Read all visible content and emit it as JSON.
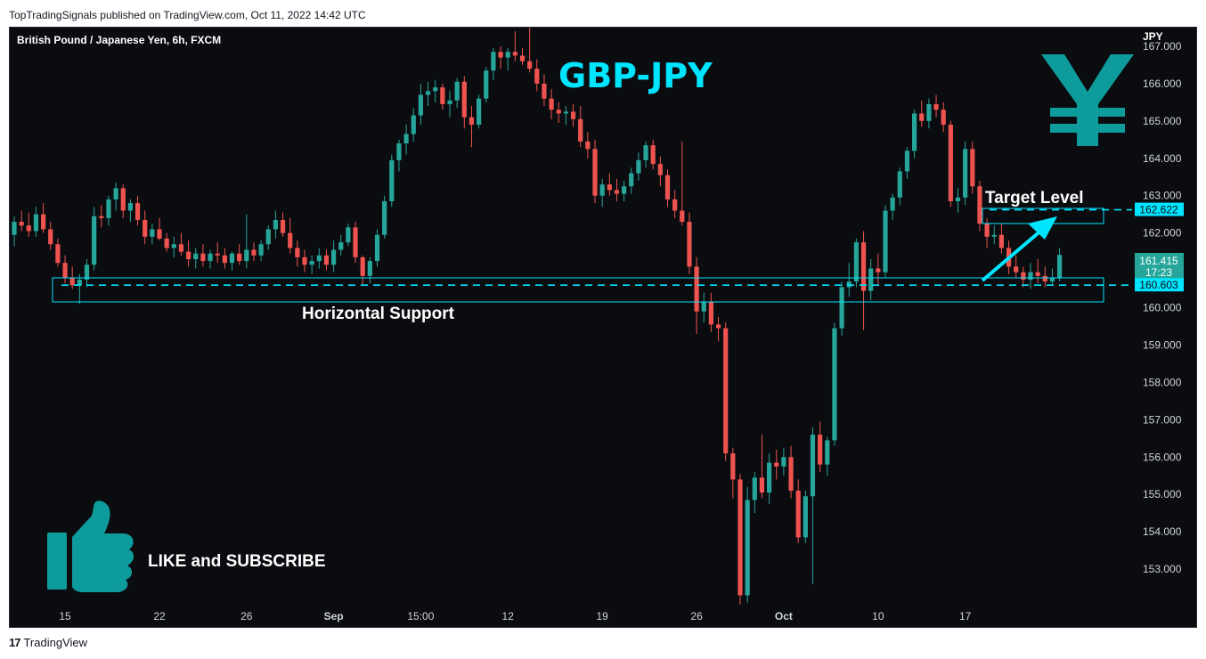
{
  "header": {
    "published_line": "TopTradingSignals published on TradingView.com, Oct 11, 2022 14:42 UTC"
  },
  "footer": {
    "brand": "TradingView",
    "logo_glyph": "17"
  },
  "chart_data": {
    "type": "candlestick",
    "title": "British Pound / Japanese Yen, 6h, FXCM",
    "overlay_title": "GBP-JPY",
    "currency_label": "JPY",
    "yen_symbol": "¥",
    "ylim": [
      152.0,
      167.5
    ],
    "y_ticks": [
      167.0,
      166.0,
      165.0,
      164.0,
      163.0,
      162.0,
      161.0,
      160.0,
      159.0,
      158.0,
      157.0,
      156.0,
      155.0,
      154.0,
      153.0
    ],
    "x_tick_labels": [
      {
        "label": "15",
        "bar": 7
      },
      {
        "label": "22",
        "bar": 20
      },
      {
        "label": "26",
        "bar": 32
      },
      {
        "label": "Sep",
        "bar": 44
      },
      {
        "label": "15:00",
        "bar": 56
      },
      {
        "label": "12",
        "bar": 68
      },
      {
        "label": "19",
        "bar": 81
      },
      {
        "label": "26",
        "bar": 94
      },
      {
        "label": "Oct",
        "bar": 106
      },
      {
        "label": "10",
        "bar": 119
      },
      {
        "label": "17",
        "bar": 131
      }
    ],
    "last_price": {
      "value": "161.415",
      "countdown": "17:23",
      "price": 161.415
    },
    "levels": [
      {
        "name": "Target Level",
        "value": "162.622",
        "price": 162.622
      },
      {
        "name": "Horizontal Support",
        "value": "160.603",
        "price": 160.603
      }
    ],
    "annotations": {
      "target": "Target Level",
      "support": "Horizontal Support",
      "cta": "LIKE and SUBSCRIBE"
    },
    "colors": {
      "background": "#0b0c10",
      "up": "#26a69a",
      "down": "#ef5350",
      "accent": "#00e5ff",
      "icon": "#0e9b9b",
      "axis_text": "#d1d4dc",
      "last_price_bg": "#26a69a"
    },
    "ohlc": [
      [
        161.95,
        162.45,
        161.65,
        162.3
      ],
      [
        162.3,
        162.6,
        162.05,
        162.2
      ],
      [
        162.2,
        162.55,
        161.9,
        162.05
      ],
      [
        162.05,
        162.7,
        161.9,
        162.5
      ],
      [
        162.5,
        162.8,
        162.0,
        162.1
      ],
      [
        162.1,
        162.3,
        161.55,
        161.7
      ],
      [
        161.7,
        161.85,
        161.1,
        161.2
      ],
      [
        161.2,
        161.4,
        160.65,
        160.8
      ],
      [
        160.8,
        161.1,
        160.5,
        160.6
      ],
      [
        160.6,
        160.9,
        160.1,
        160.75
      ],
      [
        160.75,
        161.3,
        160.55,
        161.15
      ],
      [
        161.15,
        162.7,
        161.0,
        162.45
      ],
      [
        162.45,
        162.75,
        162.15,
        162.4
      ],
      [
        162.4,
        163.0,
        162.2,
        162.9
      ],
      [
        162.9,
        163.35,
        162.6,
        163.2
      ],
      [
        163.2,
        163.3,
        162.4,
        162.6
      ],
      [
        162.6,
        162.9,
        162.3,
        162.8
      ],
      [
        162.8,
        163.0,
        162.2,
        162.35
      ],
      [
        162.35,
        162.6,
        161.7,
        161.9
      ],
      [
        161.9,
        162.25,
        161.7,
        162.1
      ],
      [
        162.1,
        162.4,
        161.8,
        161.85
      ],
      [
        161.85,
        162.0,
        161.5,
        161.6
      ],
      [
        161.6,
        161.9,
        161.35,
        161.7
      ],
      [
        161.7,
        162.0,
        161.4,
        161.5
      ],
      [
        161.5,
        161.8,
        161.1,
        161.3
      ],
      [
        161.3,
        161.6,
        161.05,
        161.45
      ],
      [
        161.45,
        161.7,
        161.1,
        161.25
      ],
      [
        161.25,
        161.55,
        161.05,
        161.45
      ],
      [
        161.45,
        161.75,
        161.2,
        161.4
      ],
      [
        161.4,
        161.6,
        161.05,
        161.2
      ],
      [
        161.2,
        161.5,
        161.0,
        161.45
      ],
      [
        161.45,
        161.7,
        161.15,
        161.25
      ],
      [
        161.25,
        162.5,
        161.05,
        161.55
      ],
      [
        161.55,
        161.75,
        161.25,
        161.4
      ],
      [
        161.4,
        161.8,
        161.25,
        161.7
      ],
      [
        161.7,
        162.2,
        161.55,
        162.1
      ],
      [
        162.1,
        162.6,
        161.85,
        162.35
      ],
      [
        162.35,
        162.55,
        161.9,
        162.0
      ],
      [
        162.0,
        162.4,
        161.45,
        161.6
      ],
      [
        161.6,
        161.8,
        161.1,
        161.35
      ],
      [
        161.35,
        161.55,
        160.95,
        161.15
      ],
      [
        161.15,
        161.4,
        160.9,
        161.25
      ],
      [
        161.25,
        161.6,
        161.05,
        161.4
      ],
      [
        161.4,
        161.55,
        161.0,
        161.15
      ],
      [
        161.15,
        161.8,
        160.95,
        161.55
      ],
      [
        161.55,
        161.95,
        161.4,
        161.75
      ],
      [
        161.75,
        162.25,
        161.65,
        162.15
      ],
      [
        162.15,
        162.3,
        161.2,
        161.35
      ],
      [
        161.35,
        161.4,
        160.6,
        160.85
      ],
      [
        160.85,
        161.35,
        160.65,
        161.25
      ],
      [
        161.25,
        162.1,
        161.1,
        161.95
      ],
      [
        161.95,
        163.0,
        161.85,
        162.85
      ],
      [
        162.85,
        164.1,
        162.7,
        163.95
      ],
      [
        163.95,
        164.5,
        163.65,
        164.4
      ],
      [
        164.4,
        164.9,
        164.1,
        164.65
      ],
      [
        164.65,
        165.35,
        164.45,
        165.15
      ],
      [
        165.15,
        166.0,
        164.9,
        165.7
      ],
      [
        165.7,
        166.05,
        165.4,
        165.8
      ],
      [
        165.8,
        166.1,
        165.5,
        165.9
      ],
      [
        165.9,
        166.0,
        165.3,
        165.45
      ],
      [
        165.45,
        165.8,
        165.1,
        165.55
      ],
      [
        165.55,
        166.15,
        165.35,
        166.05
      ],
      [
        166.05,
        166.2,
        164.8,
        165.1
      ],
      [
        165.1,
        165.4,
        164.3,
        164.9
      ],
      [
        164.9,
        165.7,
        164.8,
        165.6
      ],
      [
        165.6,
        166.45,
        165.5,
        166.35
      ],
      [
        166.35,
        166.95,
        166.1,
        166.85
      ],
      [
        166.85,
        167.0,
        166.4,
        166.7
      ],
      [
        166.7,
        166.95,
        166.35,
        166.85
      ],
      [
        166.85,
        167.4,
        166.6,
        166.75
      ],
      [
        166.75,
        166.95,
        166.5,
        166.6
      ],
      [
        166.6,
        167.8,
        166.3,
        166.4
      ],
      [
        166.4,
        166.65,
        165.8,
        166.0
      ],
      [
        166.0,
        166.25,
        165.4,
        165.6
      ],
      [
        165.6,
        165.85,
        165.05,
        165.3
      ],
      [
        165.3,
        165.5,
        164.95,
        165.2
      ],
      [
        165.2,
        165.4,
        164.9,
        165.25
      ],
      [
        165.25,
        165.45,
        164.85,
        165.05
      ],
      [
        165.05,
        165.4,
        164.3,
        164.45
      ],
      [
        164.45,
        164.7,
        164.0,
        164.25
      ],
      [
        164.25,
        164.5,
        162.8,
        163.0
      ],
      [
        163.0,
        163.45,
        162.7,
        163.3
      ],
      [
        163.3,
        163.6,
        163.0,
        163.15
      ],
      [
        163.15,
        163.45,
        162.85,
        163.05
      ],
      [
        163.05,
        163.4,
        162.85,
        163.25
      ],
      [
        163.25,
        163.75,
        163.05,
        163.6
      ],
      [
        163.6,
        164.15,
        163.4,
        163.95
      ],
      [
        163.95,
        164.45,
        163.75,
        164.35
      ],
      [
        164.35,
        164.5,
        163.7,
        163.85
      ],
      [
        163.85,
        164.05,
        163.25,
        163.55
      ],
      [
        163.55,
        163.7,
        162.7,
        162.9
      ],
      [
        162.9,
        163.15,
        162.4,
        162.6
      ],
      [
        162.6,
        164.45,
        162.2,
        162.3
      ],
      [
        162.3,
        162.55,
        160.9,
        161.1
      ],
      [
        161.1,
        161.35,
        159.3,
        159.9
      ],
      [
        159.9,
        160.4,
        159.6,
        160.15
      ],
      [
        160.15,
        160.4,
        159.35,
        159.55
      ],
      [
        159.55,
        159.75,
        159.1,
        159.45
      ],
      [
        159.45,
        159.6,
        155.9,
        156.1
      ],
      [
        156.1,
        156.25,
        154.9,
        155.4
      ],
      [
        155.4,
        155.55,
        152.05,
        152.3
      ],
      [
        152.3,
        155.2,
        152.1,
        154.85
      ],
      [
        154.85,
        155.6,
        154.5,
        155.45
      ],
      [
        155.45,
        156.6,
        154.9,
        155.05
      ],
      [
        155.05,
        156.1,
        154.75,
        155.85
      ],
      [
        155.85,
        156.2,
        155.4,
        155.75
      ],
      [
        155.75,
        156.25,
        155.5,
        156.0
      ],
      [
        156.0,
        156.3,
        154.9,
        155.1
      ],
      [
        155.1,
        155.4,
        153.7,
        153.85
      ],
      [
        153.85,
        155.1,
        153.7,
        154.95
      ],
      [
        154.95,
        156.8,
        152.6,
        156.6
      ],
      [
        156.6,
        156.95,
        155.6,
        155.8
      ],
      [
        155.8,
        156.55,
        155.5,
        156.45
      ],
      [
        156.45,
        159.6,
        156.3,
        159.45
      ],
      [
        159.45,
        160.7,
        159.25,
        160.55
      ],
      [
        160.55,
        161.2,
        160.3,
        160.7
      ],
      [
        160.7,
        161.85,
        160.55,
        161.75
      ],
      [
        161.75,
        162.05,
        159.4,
        160.45
      ],
      [
        160.45,
        161.3,
        160.2,
        161.05
      ],
      [
        161.05,
        161.45,
        160.6,
        160.95
      ],
      [
        160.95,
        162.75,
        160.8,
        162.6
      ],
      [
        162.6,
        163.05,
        162.35,
        162.95
      ],
      [
        162.95,
        163.75,
        162.75,
        163.65
      ],
      [
        163.65,
        164.3,
        163.45,
        164.2
      ],
      [
        164.2,
        165.3,
        164.0,
        165.2
      ],
      [
        165.2,
        165.55,
        164.85,
        165.0
      ],
      [
        165.0,
        165.6,
        164.8,
        165.45
      ],
      [
        165.45,
        165.7,
        165.1,
        165.3
      ],
      [
        165.3,
        165.5,
        164.7,
        164.9
      ],
      [
        164.9,
        165.0,
        162.7,
        162.85
      ],
      [
        162.85,
        163.2,
        162.55,
        162.95
      ],
      [
        162.95,
        164.45,
        162.75,
        164.25
      ],
      [
        164.25,
        164.45,
        163.05,
        163.25
      ],
      [
        163.25,
        163.4,
        162.05,
        162.25
      ],
      [
        162.25,
        162.4,
        161.6,
        161.9
      ],
      [
        161.9,
        162.2,
        161.7,
        161.95
      ],
      [
        161.95,
        162.25,
        161.45,
        161.6
      ],
      [
        161.6,
        161.8,
        160.9,
        161.1
      ],
      [
        161.1,
        161.4,
        160.8,
        160.95
      ],
      [
        160.95,
        161.1,
        160.55,
        160.75
      ],
      [
        160.75,
        161.2,
        160.5,
        160.95
      ],
      [
        160.95,
        161.3,
        160.65,
        160.85
      ],
      [
        160.85,
        161.1,
        160.55,
        160.7
      ],
      [
        160.7,
        161.05,
        160.6,
        160.8
      ],
      [
        160.8,
        161.6,
        160.7,
        161.415
      ]
    ]
  }
}
